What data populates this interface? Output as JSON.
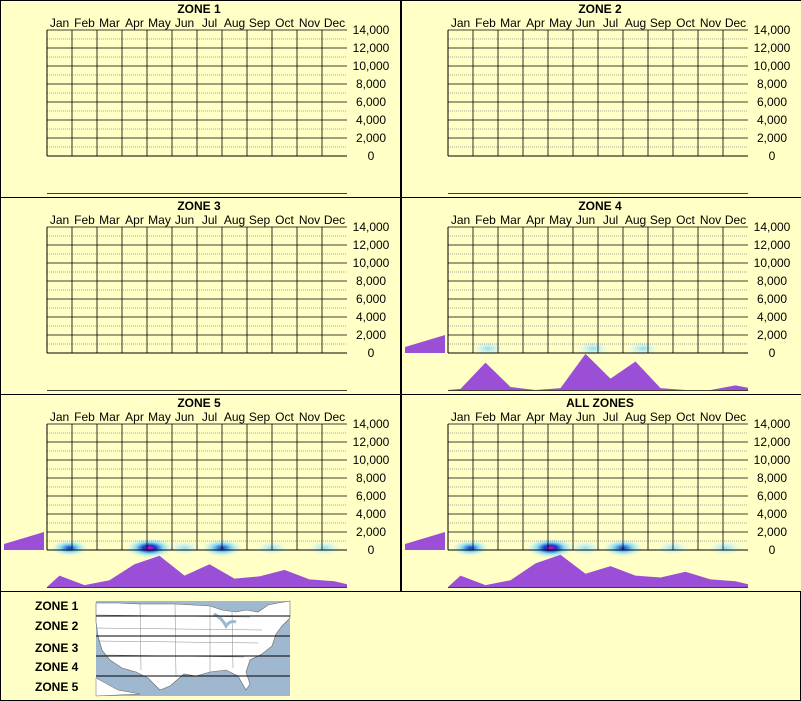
{
  "colors": {
    "background": "#ffffc6",
    "border": "#000000",
    "grid_major": "#000000",
    "grid_minor": "#555555",
    "density_fill": "#9b4fd6",
    "heat_high": "#ff00aa",
    "heat_mid": "#1133cc",
    "heat_low": "#bfefff",
    "map_water": "#9fb8cf",
    "map_land": "#ffffff"
  },
  "months": [
    "Jan",
    "Feb",
    "Mar",
    "Apr",
    "May",
    "Jun",
    "Jul",
    "Aug",
    "Sep",
    "Oct",
    "Nov",
    "Dec"
  ],
  "y_ticks": [
    "14,000",
    "12,000",
    "10,000",
    "8,000",
    "6,000",
    "4,000",
    "2,000",
    "0"
  ],
  "legend": {
    "zones": [
      "ZONE 1",
      "ZONE 2",
      "ZONE 3",
      "ZONE 4",
      "ZONE 5"
    ],
    "map_icon": "us-map-icon"
  },
  "chart_data": [
    {
      "type": "heatmap",
      "title": "ZONE 1",
      "x": [
        "Jan",
        "Feb",
        "Mar",
        "Apr",
        "May",
        "Jun",
        "Jul",
        "Aug",
        "Sep",
        "Oct",
        "Nov",
        "Dec"
      ],
      "ylim": [
        0,
        14000
      ],
      "monthly_density": [
        0,
        0,
        0,
        0,
        0,
        0,
        0,
        0,
        0,
        0,
        0,
        0
      ],
      "elevation_density": [
        0,
        0,
        0,
        0,
        0,
        0,
        0,
        0
      ],
      "hotspots": []
    },
    {
      "type": "heatmap",
      "title": "ZONE 2",
      "x": [
        "Jan",
        "Feb",
        "Mar",
        "Apr",
        "May",
        "Jun",
        "Jul",
        "Aug",
        "Sep",
        "Oct",
        "Nov",
        "Dec"
      ],
      "ylim": [
        0,
        14000
      ],
      "monthly_density": [
        0,
        0,
        0,
        0,
        0,
        0,
        0,
        0,
        0,
        0,
        0,
        0
      ],
      "elevation_density": [
        0,
        0,
        0,
        0,
        0,
        0,
        0,
        0
      ],
      "hotspots": []
    },
    {
      "type": "heatmap",
      "title": "ZONE 3",
      "x": [
        "Jan",
        "Feb",
        "Mar",
        "Apr",
        "May",
        "Jun",
        "Jul",
        "Aug",
        "Sep",
        "Oct",
        "Nov",
        "Dec"
      ],
      "ylim": [
        0,
        14000
      ],
      "monthly_density": [
        0,
        0,
        0,
        0,
        0,
        0,
        0,
        0,
        0,
        0,
        0,
        0
      ],
      "elevation_density": [
        0,
        0,
        0,
        0,
        0,
        0,
        0,
        0
      ],
      "hotspots": []
    },
    {
      "type": "heatmap",
      "title": "ZONE 4",
      "x": [
        "Jan",
        "Feb",
        "Mar",
        "Apr",
        "May",
        "Jun",
        "Jul",
        "Aug",
        "Sep",
        "Oct",
        "Nov",
        "Dec"
      ],
      "ylim": [
        0,
        14000
      ],
      "monthly_density": [
        0.03,
        0.72,
        0.08,
        0.0,
        0.05,
        0.95,
        0.3,
        0.75,
        0.05,
        0.0,
        0.0,
        0.12
      ],
      "elevation_density": [
        1.0,
        0.8,
        0.55,
        0.35,
        0.2,
        0.1,
        0.04,
        0.0
      ],
      "hotspots": [
        {
          "month": 1.1,
          "elev": 500,
          "level": 0.35
        },
        {
          "month": 5.3,
          "elev": 500,
          "level": 0.4
        },
        {
          "month": 7.3,
          "elev": 500,
          "level": 0.35
        }
      ]
    },
    {
      "type": "heatmap",
      "title": "ZONE 5",
      "x": [
        "Jan",
        "Feb",
        "Mar",
        "Apr",
        "May",
        "Jun",
        "Jul",
        "Aug",
        "Sep",
        "Oct",
        "Nov",
        "Dec"
      ],
      "ylim": [
        0,
        14000
      ],
      "monthly_density": [
        0.3,
        0.05,
        0.18,
        0.6,
        0.82,
        0.3,
        0.6,
        0.22,
        0.28,
        0.45,
        0.2,
        0.15
      ],
      "elevation_density": [
        1.0,
        0.5,
        0.25,
        0.12,
        0.06,
        0.03,
        0.01,
        0.0
      ],
      "hotspots": [
        {
          "month": 0.4,
          "elev": 150,
          "level": 0.55
        },
        {
          "month": 3.6,
          "elev": 150,
          "level": 1.0
        },
        {
          "month": 6.5,
          "elev": 150,
          "level": 0.7
        },
        {
          "month": 5.0,
          "elev": 150,
          "level": 0.35
        },
        {
          "month": 8.5,
          "elev": 150,
          "level": 0.35
        },
        {
          "month": 10.6,
          "elev": 150,
          "level": 0.45
        }
      ]
    },
    {
      "type": "heatmap",
      "title": "ALL ZONES",
      "x": [
        "Jan",
        "Feb",
        "Mar",
        "Apr",
        "May",
        "Jun",
        "Jul",
        "Aug",
        "Sep",
        "Oct",
        "Nov",
        "Dec"
      ],
      "ylim": [
        0,
        14000
      ],
      "monthly_density": [
        0.3,
        0.05,
        0.18,
        0.62,
        0.85,
        0.35,
        0.55,
        0.3,
        0.25,
        0.4,
        0.2,
        0.15
      ],
      "elevation_density": [
        1.0,
        0.5,
        0.25,
        0.12,
        0.06,
        0.03,
        0.01,
        0.0
      ],
      "hotspots": [
        {
          "month": 0.4,
          "elev": 150,
          "level": 0.55
        },
        {
          "month": 3.6,
          "elev": 150,
          "level": 1.0
        },
        {
          "month": 6.5,
          "elev": 150,
          "level": 0.7
        },
        {
          "month": 5.0,
          "elev": 150,
          "level": 0.35
        },
        {
          "month": 8.5,
          "elev": 150,
          "level": 0.35
        },
        {
          "month": 10.6,
          "elev": 150,
          "level": 0.45
        }
      ]
    }
  ]
}
